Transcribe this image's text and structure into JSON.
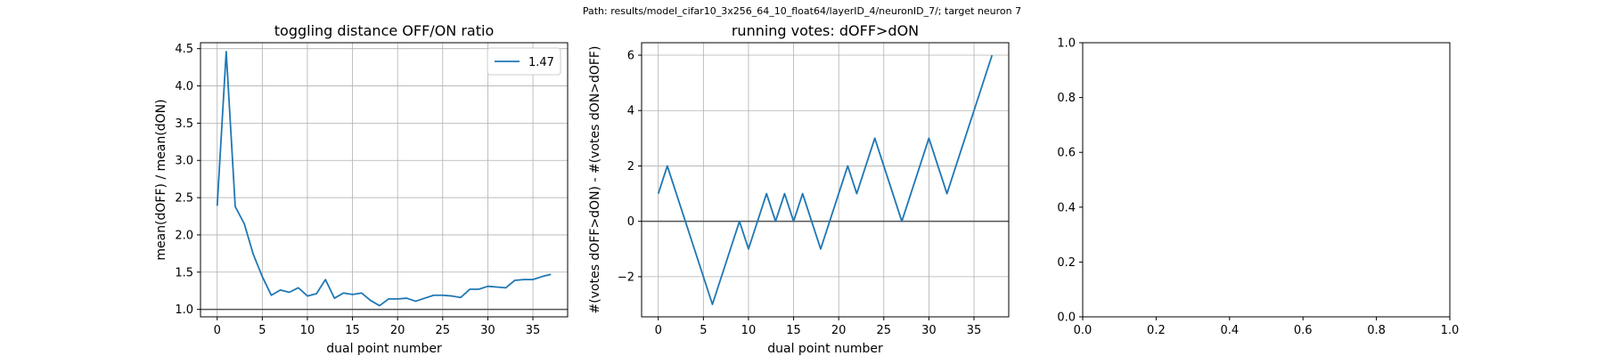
{
  "suptitle": "Path: results/model_cifar10_3x256_64_10_float64/layerID_4/neuronID_7/; target neuron 7",
  "colors": {
    "line": "#1f77b4",
    "grid": "#b0b0b0",
    "baseline": "#555555",
    "axes": "#000000"
  },
  "chart_data": [
    {
      "type": "line",
      "title": "toggling distance OFF/ON ratio",
      "xlabel": "dual point number",
      "ylabel": "mean(dOFF) / mean(dON)",
      "xlim": [
        -1.85,
        38.85
      ],
      "ylim": [
        0.9,
        4.58
      ],
      "xticks": [
        0,
        5,
        10,
        15,
        20,
        25,
        30,
        35
      ],
      "yticks": [
        1.0,
        1.5,
        2.0,
        2.5,
        3.0,
        3.5,
        4.0,
        4.5
      ],
      "ytick_labels": [
        "1.0",
        "1.5",
        "2.0",
        "2.5",
        "3.0",
        "3.5",
        "4.0",
        "4.5"
      ],
      "grid": true,
      "hline": 1.0,
      "legend": {
        "placement": "upper right",
        "entries": [
          "1.47"
        ]
      },
      "series": [
        {
          "name": "1.47",
          "x": [
            0,
            1,
            2,
            3,
            4,
            5,
            6,
            7,
            8,
            9,
            10,
            11,
            12,
            13,
            14,
            15,
            16,
            17,
            18,
            19,
            20,
            21,
            22,
            23,
            24,
            25,
            26,
            27,
            28,
            29,
            30,
            31,
            32,
            33,
            34,
            35,
            36,
            37
          ],
          "y": [
            2.39,
            4.46,
            2.38,
            2.15,
            1.74,
            1.44,
            1.19,
            1.26,
            1.23,
            1.29,
            1.18,
            1.21,
            1.4,
            1.15,
            1.22,
            1.2,
            1.22,
            1.12,
            1.05,
            1.14,
            1.14,
            1.15,
            1.11,
            1.15,
            1.19,
            1.19,
            1.18,
            1.16,
            1.27,
            1.27,
            1.31,
            1.3,
            1.29,
            1.39,
            1.4,
            1.4,
            1.44,
            1.47
          ]
        }
      ]
    },
    {
      "type": "line",
      "title": "running votes: dOFF>dON",
      "xlabel": "dual point number",
      "ylabel": "#(votes dOFF>dON) - #(votes dON>dOFF)",
      "xlim": [
        -1.85,
        38.85
      ],
      "ylim": [
        -3.45,
        6.45
      ],
      "xticks": [
        0,
        5,
        10,
        15,
        20,
        25,
        30,
        35
      ],
      "yticks": [
        -2,
        0,
        2,
        4,
        6
      ],
      "ytick_labels": [
        "−2",
        "0",
        "2",
        "4",
        "6"
      ],
      "grid": true,
      "hline": 0,
      "series": [
        {
          "x": [
            0,
            1,
            2,
            3,
            4,
            5,
            6,
            7,
            8,
            9,
            10,
            11,
            12,
            13,
            14,
            15,
            16,
            17,
            18,
            19,
            20,
            21,
            22,
            23,
            24,
            25,
            26,
            27,
            28,
            29,
            30,
            31,
            32,
            33,
            34,
            35,
            36,
            37
          ],
          "y": [
            1,
            2,
            1,
            0,
            -1,
            -2,
            -3,
            -2,
            -1,
            0,
            -1,
            0,
            1,
            0,
            1,
            0,
            1,
            0,
            -1,
            0,
            1,
            2,
            1,
            2,
            3,
            2,
            1,
            0,
            1,
            2,
            3,
            2,
            1,
            2,
            3,
            4,
            5,
            6
          ]
        }
      ]
    },
    {
      "type": "line",
      "title": "",
      "xlabel": "",
      "ylabel": "",
      "xlim": [
        0,
        1
      ],
      "ylim": [
        0,
        1
      ],
      "xticks": [
        0,
        0.2,
        0.4,
        0.6,
        0.8,
        1.0
      ],
      "yticks": [
        0,
        0.2,
        0.4,
        0.6,
        0.8,
        1.0
      ],
      "xtick_labels": [
        "0.0",
        "0.2",
        "0.4",
        "0.6",
        "0.8",
        "1.0"
      ],
      "ytick_labels": [
        "0.0",
        "0.2",
        "0.4",
        "0.6",
        "0.8",
        "1.0"
      ],
      "grid": false,
      "series": []
    }
  ]
}
